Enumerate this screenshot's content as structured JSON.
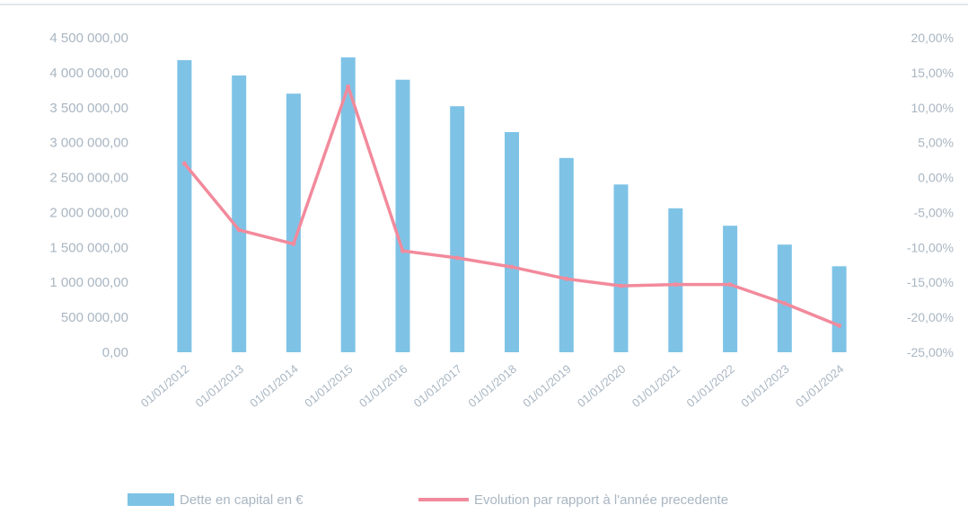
{
  "chart_data": {
    "type": "bar",
    "title": "",
    "categories": [
      "01/01/2012",
      "01/01/2013",
      "01/01/2014",
      "01/01/2015",
      "01/01/2016",
      "01/01/2017",
      "01/01/2018",
      "01/01/2019",
      "01/01/2020",
      "01/01/2021",
      "01/01/2022",
      "01/01/2023",
      "01/01/2024"
    ],
    "series": [
      {
        "name": "Dette en capital en €",
        "type": "bar",
        "axis": "left",
        "values": [
          4180000,
          3960000,
          3700000,
          4220000,
          3900000,
          3520000,
          3150000,
          2780000,
          2400000,
          2060000,
          1810000,
          1540000,
          1230000
        ]
      },
      {
        "name": "Evolution par rapport à l'année precedente",
        "type": "line",
        "axis": "right",
        "values": [
          2.0,
          -7.5,
          -9.5,
          13.0,
          -10.5,
          -11.5,
          -12.8,
          -14.5,
          -15.5,
          -15.3,
          -15.3,
          -18.0,
          -21.2
        ]
      }
    ],
    "y_left": {
      "min": 0,
      "max": 4500000,
      "ticks": [
        "0,00",
        "500 000,00",
        "1 000 000,00",
        "1 500 000,00",
        "2 000 000,00",
        "2 500 000,00",
        "3 000 000,00",
        "3 500 000,00",
        "4 000 000,00",
        "4 500 000,00"
      ]
    },
    "y_right": {
      "min": -25,
      "max": 20,
      "ticks": [
        "-25,00%",
        "-20,00%",
        "-15,00%",
        "-10,00%",
        "-5,00%",
        "0,00%",
        "5,00%",
        "10,00%",
        "15,00%",
        "20,00%"
      ]
    },
    "grid": false,
    "legend_position": "bottom",
    "colors": {
      "bar": "#7ec3e6",
      "line": "#f28a9c",
      "text": "#a9b6c2"
    }
  }
}
